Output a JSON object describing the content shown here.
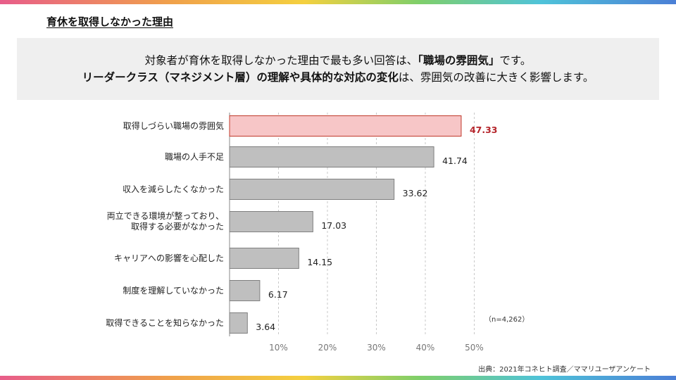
{
  "page": {
    "title": "育休を取得しなかった理由",
    "summary": {
      "line1_pre": "対象者が育休を取得しなかった理由で最も多い回答は、",
      "line1_bold": "「職場の雰囲気」",
      "line1_post": "です。",
      "line2_bold1": "リーダークラス（マネジメント層）の理解や具体的な対応の変化",
      "line2_mid": "は、雰囲気の改善に大きく影響します。"
    },
    "note": "（n=4,262）",
    "source": "出典：2021年コネヒト調査／ママリユーザアンケート"
  },
  "colors": {
    "highlight_fill": "#f7c6c7",
    "highlight_stroke": "#c0392b",
    "bar_fill": "#bfbfbf",
    "bar_stroke": "#7f7f7f",
    "highlight_text": "#b5252b"
  },
  "chart_data": {
    "type": "bar",
    "orientation": "horizontal",
    "categories": [
      "取得しづらい職場の雰囲気",
      "職場の人手不足",
      "収入を減らしたくなかった",
      "両立できる環境が整っており、\n取得する必要がなかった",
      "キャリアへの影響を心配した",
      "制度を理解していなかった",
      "取得できることを知らなかった"
    ],
    "values": [
      47.33,
      41.74,
      33.62,
      17.03,
      14.15,
      6.17,
      3.64
    ],
    "value_labels": [
      "47.33",
      "41.74",
      "33.62",
      "17.03",
      "14.15",
      "6.17",
      "3.64"
    ],
    "highlight_index": 0,
    "xlim": [
      0,
      50
    ],
    "x_ticks": [
      10,
      20,
      30,
      40,
      50
    ],
    "x_tick_labels": [
      "10%",
      "20%",
      "30%",
      "40%",
      "50%"
    ],
    "grid": "vertical dashed",
    "title": "",
    "xlabel": "",
    "ylabel": ""
  }
}
